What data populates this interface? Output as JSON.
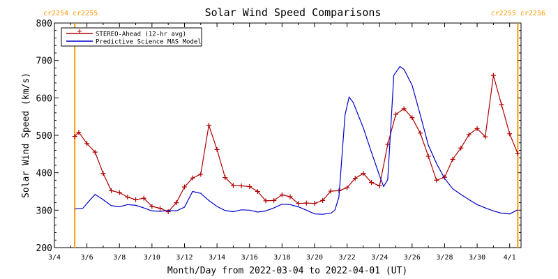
{
  "chart_data": {
    "type": "line",
    "title": "Solar Wind Speed Comparisons",
    "ylabel": "Solar Wind Speed (km/s)",
    "xlabel": "Month/Day from 2022-03-04 to 2022-04-01 (UT)",
    "ylim": [
      200,
      800
    ],
    "y_ticks": [
      200,
      300,
      400,
      500,
      600,
      700,
      800
    ],
    "xlim": [
      "2022-03-04",
      "2022-04-01"
    ],
    "x_tick_labels": [
      "3/4",
      "3/6",
      "3/8",
      "3/10",
      "3/12",
      "3/14",
      "3/16",
      "3/18",
      "3/20",
      "3/22",
      "3/24",
      "3/26",
      "3/28",
      "3/30",
      "4/1"
    ],
    "legend_placement": "top-left",
    "carrington_markers": [
      {
        "label": "cr2254 cr2255",
        "date": "2022-03-05T06:00",
        "color": "#ff9900",
        "position": "left"
      },
      {
        "label": "cr2255 cr2256",
        "date": "2022-04-01T12:00",
        "color": "#ff9900",
        "position": "right"
      }
    ],
    "series": [
      {
        "name": "STEREO-Ahead (12-hr avg)",
        "color": "#b00000",
        "marker": "plus",
        "points": [
          [
            "2022-03-05T06:00",
            497
          ],
          [
            "2022-03-05T12:00",
            508
          ],
          [
            "2022-03-06T00:00",
            478
          ],
          [
            "2022-03-06T12:00",
            455
          ],
          [
            "2022-03-07T00:00",
            398
          ],
          [
            "2022-03-07T12:00",
            352
          ],
          [
            "2022-03-08T00:00",
            347
          ],
          [
            "2022-03-08T12:00",
            335
          ],
          [
            "2022-03-09T00:00",
            328
          ],
          [
            "2022-03-09T12:00",
            332
          ],
          [
            "2022-03-10T00:00",
            310
          ],
          [
            "2022-03-10T12:00",
            305
          ],
          [
            "2022-03-11T00:00",
            296
          ],
          [
            "2022-03-11T12:00",
            320
          ],
          [
            "2022-03-12T00:00",
            362
          ],
          [
            "2022-03-12T12:00",
            386
          ],
          [
            "2022-03-13T00:00",
            396
          ],
          [
            "2022-03-13T12:00",
            527
          ],
          [
            "2022-03-14T00:00",
            462
          ],
          [
            "2022-03-14T12:00",
            387
          ],
          [
            "2022-03-15T00:00",
            366
          ],
          [
            "2022-03-15T12:00",
            365
          ],
          [
            "2022-03-16T00:00",
            363
          ],
          [
            "2022-03-16T12:00",
            350
          ],
          [
            "2022-03-17T00:00",
            325
          ],
          [
            "2022-03-17T12:00",
            326
          ],
          [
            "2022-03-18T00:00",
            341
          ],
          [
            "2022-03-18T12:00",
            336
          ],
          [
            "2022-03-19T00:00",
            318
          ],
          [
            "2022-03-19T12:00",
            319
          ],
          [
            "2022-03-20T00:00",
            318
          ],
          [
            "2022-03-20T12:00",
            326
          ],
          [
            "2022-03-21T00:00",
            351
          ],
          [
            "2022-03-21T12:00",
            352
          ],
          [
            "2022-03-22T00:00",
            360
          ],
          [
            "2022-03-22T12:00",
            385
          ],
          [
            "2022-03-23T00:00",
            398
          ],
          [
            "2022-03-23T12:00",
            374
          ],
          [
            "2022-03-24T00:00",
            365
          ],
          [
            "2022-03-24T12:00",
            476
          ],
          [
            "2022-03-25T00:00",
            556
          ],
          [
            "2022-03-25T12:00",
            571
          ],
          [
            "2022-03-26T00:00",
            547
          ],
          [
            "2022-03-26T12:00",
            506
          ],
          [
            "2022-03-27T00:00",
            444
          ],
          [
            "2022-03-27T12:00",
            380
          ],
          [
            "2022-03-28T00:00",
            388
          ],
          [
            "2022-03-28T12:00",
            436
          ],
          [
            "2022-03-29T00:00",
            466
          ],
          [
            "2022-03-29T12:00",
            502
          ],
          [
            "2022-03-30T00:00",
            518
          ],
          [
            "2022-03-30T12:00",
            496
          ],
          [
            "2022-03-31T00:00",
            660
          ],
          [
            "2022-03-31T12:00",
            582
          ],
          [
            "2022-04-01T00:00",
            504
          ],
          [
            "2022-04-01T12:00",
            451
          ]
        ]
      },
      {
        "name": "Predictive Science MAS Model",
        "color": "#0000cc",
        "marker": "none",
        "points": [
          [
            "2022-03-05T06:00",
            303
          ],
          [
            "2022-03-05T18:00",
            305
          ],
          [
            "2022-03-06T06:00",
            330
          ],
          [
            "2022-03-06T12:00",
            342
          ],
          [
            "2022-03-07T00:00",
            328
          ],
          [
            "2022-03-07T12:00",
            312
          ],
          [
            "2022-03-08T00:00",
            309
          ],
          [
            "2022-03-08T12:00",
            315
          ],
          [
            "2022-03-09T00:00",
            313
          ],
          [
            "2022-03-09T12:00",
            306
          ],
          [
            "2022-03-10T00:00",
            298
          ],
          [
            "2022-03-10T12:00",
            297
          ],
          [
            "2022-03-11T00:00",
            299
          ],
          [
            "2022-03-11T12:00",
            298
          ],
          [
            "2022-03-12T00:00",
            308
          ],
          [
            "2022-03-12T12:00",
            350
          ],
          [
            "2022-03-13T00:00",
            345
          ],
          [
            "2022-03-13T12:00",
            326
          ],
          [
            "2022-03-14T00:00",
            310
          ],
          [
            "2022-03-14T12:00",
            299
          ],
          [
            "2022-03-15T00:00",
            296
          ],
          [
            "2022-03-15T12:00",
            301
          ],
          [
            "2022-03-16T00:00",
            300
          ],
          [
            "2022-03-16T12:00",
            295
          ],
          [
            "2022-03-17T00:00",
            298
          ],
          [
            "2022-03-17T12:00",
            306
          ],
          [
            "2022-03-18T00:00",
            316
          ],
          [
            "2022-03-18T12:00",
            315
          ],
          [
            "2022-03-19T00:00",
            309
          ],
          [
            "2022-03-19T12:00",
            300
          ],
          [
            "2022-03-20T00:00",
            290
          ],
          [
            "2022-03-20T12:00",
            289
          ],
          [
            "2022-03-21T00:00",
            292
          ],
          [
            "2022-03-21T06:00",
            300
          ],
          [
            "2022-03-21T12:00",
            335
          ],
          [
            "2022-03-21T21:00",
            555
          ],
          [
            "2022-03-22T03:00",
            602
          ],
          [
            "2022-03-22T09:00",
            588
          ],
          [
            "2022-03-23T00:00",
            520
          ],
          [
            "2022-03-23T12:00",
            455
          ],
          [
            "2022-03-24T00:00",
            392
          ],
          [
            "2022-03-24T06:00",
            363
          ],
          [
            "2022-03-24T12:00",
            382
          ],
          [
            "2022-03-24T21:00",
            660
          ],
          [
            "2022-03-25T06:00",
            684
          ],
          [
            "2022-03-25T12:00",
            676
          ],
          [
            "2022-03-26T00:00",
            634
          ],
          [
            "2022-03-26T12:00",
            555
          ],
          [
            "2022-03-27T00:00",
            474
          ],
          [
            "2022-03-27T12:00",
            425
          ],
          [
            "2022-03-28T00:00",
            385
          ],
          [
            "2022-03-28T12:00",
            357
          ],
          [
            "2022-03-29T00:00",
            342
          ],
          [
            "2022-03-29T12:00",
            328
          ],
          [
            "2022-03-30T00:00",
            315
          ],
          [
            "2022-03-30T12:00",
            306
          ],
          [
            "2022-03-31T00:00",
            298
          ],
          [
            "2022-03-31T12:00",
            292
          ],
          [
            "2022-04-01T00:00",
            290
          ],
          [
            "2022-04-01T12:00",
            301
          ]
        ]
      }
    ]
  }
}
